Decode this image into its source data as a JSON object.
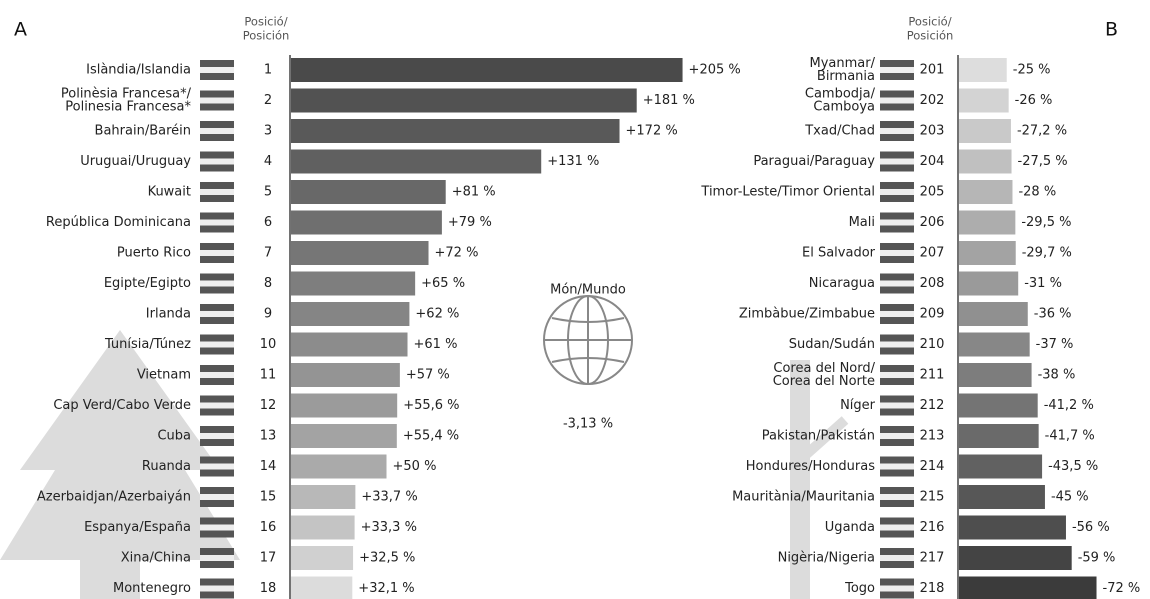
{
  "chart_data": [
    {
      "type": "bar",
      "orientation": "horizontal",
      "panel_label": "A",
      "position_header": [
        "Posició/",
        "Posición"
      ],
      "categories": [
        [
          "Islàndia/Islandia"
        ],
        [
          "Polinèsia Francesa*/",
          "Polinesia Francesa*"
        ],
        [
          "Bahrain/Baréin"
        ],
        [
          "Uruguai/Uruguay"
        ],
        [
          "Kuwait"
        ],
        [
          "República Dominicana"
        ],
        [
          "Puerto Rico"
        ],
        [
          "Egipte/Egipto"
        ],
        [
          "Irlanda"
        ],
        [
          "Tunísia/Túnez"
        ],
        [
          "Vietnam"
        ],
        [
          "Cap Verd/Cabo Verde"
        ],
        [
          "Cuba"
        ],
        [
          "Ruanda"
        ],
        [
          "Azerbaidjan/Azerbaiyán"
        ],
        [
          "Espanya/España"
        ],
        [
          "Xina/China"
        ],
        [
          "Montenegro"
        ]
      ],
      "positions": [
        1,
        2,
        3,
        4,
        5,
        6,
        7,
        8,
        9,
        10,
        11,
        12,
        13,
        14,
        15,
        16,
        17,
        18
      ],
      "values": [
        205,
        181,
        172,
        131,
        81,
        79,
        72,
        65,
        62,
        61,
        57,
        55.6,
        55.4,
        50,
        33.7,
        33.3,
        32.5,
        32.1
      ],
      "value_labels": [
        "+205 %",
        "+181 %",
        "+172 %",
        "+131 %",
        "+81 %",
        "+79 %",
        "+72 %",
        "+65 %",
        "+62 %",
        "+61 %",
        "+57 %",
        "+55,6 %",
        "+55,4 %",
        "+50 %",
        "+33,7 %",
        "+33,3 %",
        "+32,5 %",
        "+32,1 %"
      ],
      "colors": [
        "#4a4a4a",
        "#525252",
        "#595959",
        "#606060",
        "#686868",
        "#6f6f6f",
        "#767676",
        "#7e7e7e",
        "#858585",
        "#8c8c8c",
        "#949494",
        "#9b9b9b",
        "#a3a3a3",
        "#aaaaaa",
        "#b8b8b8",
        "#c4c4c4",
        "#d0d0d0",
        "#dcdcdc"
      ]
    },
    {
      "type": "bar",
      "orientation": "horizontal",
      "panel_label": "B",
      "position_header": [
        "Posició/",
        "Posición"
      ],
      "categories": [
        [
          "Myanmar/",
          "Birmania"
        ],
        [
          "Cambodja/",
          "Camboya"
        ],
        [
          "Txad/Chad"
        ],
        [
          "Paraguai/Paraguay"
        ],
        [
          "Timor-Leste/Timor Oriental"
        ],
        [
          "Mali"
        ],
        [
          "El Salvador"
        ],
        [
          "Nicaragua"
        ],
        [
          "Zimbàbue/Zimbabue"
        ],
        [
          "Sudan/Sudán"
        ],
        [
          "Corea del Nord/",
          "Corea del Norte"
        ],
        [
          "Níger"
        ],
        [
          "Pakistan/Pakistán"
        ],
        [
          "Hondures/Honduras"
        ],
        [
          "Mauritània/Mauritania"
        ],
        [
          "Uganda"
        ],
        [
          "Nigèria/Nigeria"
        ],
        [
          "Togo"
        ]
      ],
      "positions": [
        201,
        202,
        203,
        204,
        205,
        206,
        207,
        208,
        209,
        210,
        211,
        212,
        213,
        214,
        215,
        216,
        217,
        218
      ],
      "values": [
        -25,
        -26,
        -27.2,
        -27.5,
        -28,
        -29.5,
        -29.7,
        -31,
        -36,
        -37,
        -38,
        -41.2,
        -41.7,
        -43.5,
        -45,
        -56,
        -59,
        -72
      ],
      "value_labels": [
        "-25 %",
        "-26 %",
        "-27,2 %",
        "-27,5 %",
        "-28 %",
        "-29,5 %",
        "-29,7 %",
        "-31 %",
        "-36 %",
        "-37 %",
        "-38 %",
        "-41,2 %",
        "-41,7 %",
        "-43,5 %",
        "-45 %",
        "-56 %",
        "-59 %",
        "-72 %"
      ],
      "colors": [
        "#dddddd",
        "#d3d3d3",
        "#c9c9c9",
        "#c0c0c0",
        "#b6b6b6",
        "#adadad",
        "#a3a3a3",
        "#9a9a9a",
        "#909090",
        "#878787",
        "#7d7d7d",
        "#747474",
        "#6a6a6a",
        "#616161",
        "#575757",
        "#4e4e4e",
        "#444444",
        "#3b3b3b"
      ]
    }
  ],
  "world": {
    "title": "Món/Mundo",
    "text": "-3,13 %"
  }
}
